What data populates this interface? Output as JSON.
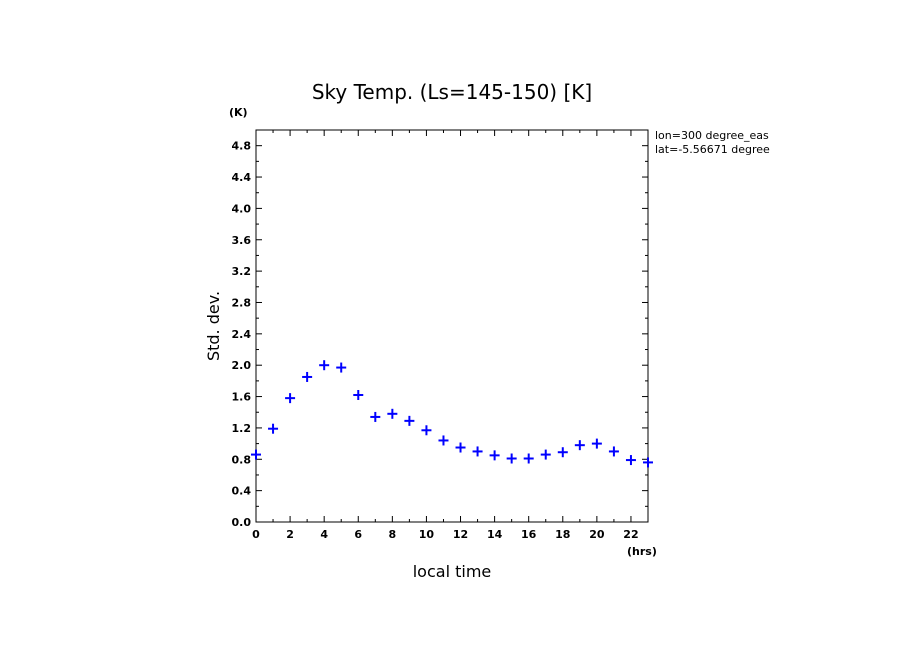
{
  "chart_data": {
    "type": "scatter",
    "title": "Sky Temp. (Ls=145-150) [K]",
    "xlabel": "local time",
    "ylabel": "Std. dev.",
    "x_unit": "(hrs)",
    "y_unit": "(K)",
    "xlim": [
      0,
      23
    ],
    "ylim": [
      0,
      5.0
    ],
    "x_ticks": [
      0,
      2,
      4,
      6,
      8,
      10,
      12,
      14,
      16,
      18,
      20,
      22
    ],
    "x_tick_labels": [
      "0",
      "2",
      "4",
      "6",
      "8",
      "10",
      "12",
      "14",
      "16",
      "18",
      "20",
      "22"
    ],
    "y_ticks": [
      0,
      0.4,
      0.8,
      1.2,
      1.6,
      2.0,
      2.4,
      2.8,
      3.2,
      3.6,
      4.0,
      4.4,
      4.8
    ],
    "y_tick_labels": [
      "0.0",
      "0.4",
      "0.8",
      "1.2",
      "1.6",
      "2.0",
      "2.4",
      "2.8",
      "3.2",
      "3.6",
      "4.0",
      "4.4",
      "4.8"
    ],
    "marker": "plus",
    "marker_color": "#0000ff",
    "series": [
      {
        "x": [
          0,
          1,
          2,
          3,
          4,
          5,
          6,
          7,
          8,
          9,
          10,
          11,
          12,
          13,
          14,
          15,
          16,
          17,
          18,
          19,
          20,
          21,
          22,
          23
        ],
        "y": [
          0.86,
          1.19,
          1.58,
          1.85,
          2.0,
          1.97,
          1.62,
          1.34,
          1.38,
          1.29,
          1.17,
          1.04,
          0.95,
          0.9,
          0.85,
          0.81,
          0.81,
          0.86,
          0.89,
          0.98,
          1.0,
          0.9,
          0.79,
          0.76
        ]
      }
    ],
    "annotations": [
      "lon=300 degree_eas",
      "lat=-5.56671 degree"
    ],
    "grid": false
  }
}
